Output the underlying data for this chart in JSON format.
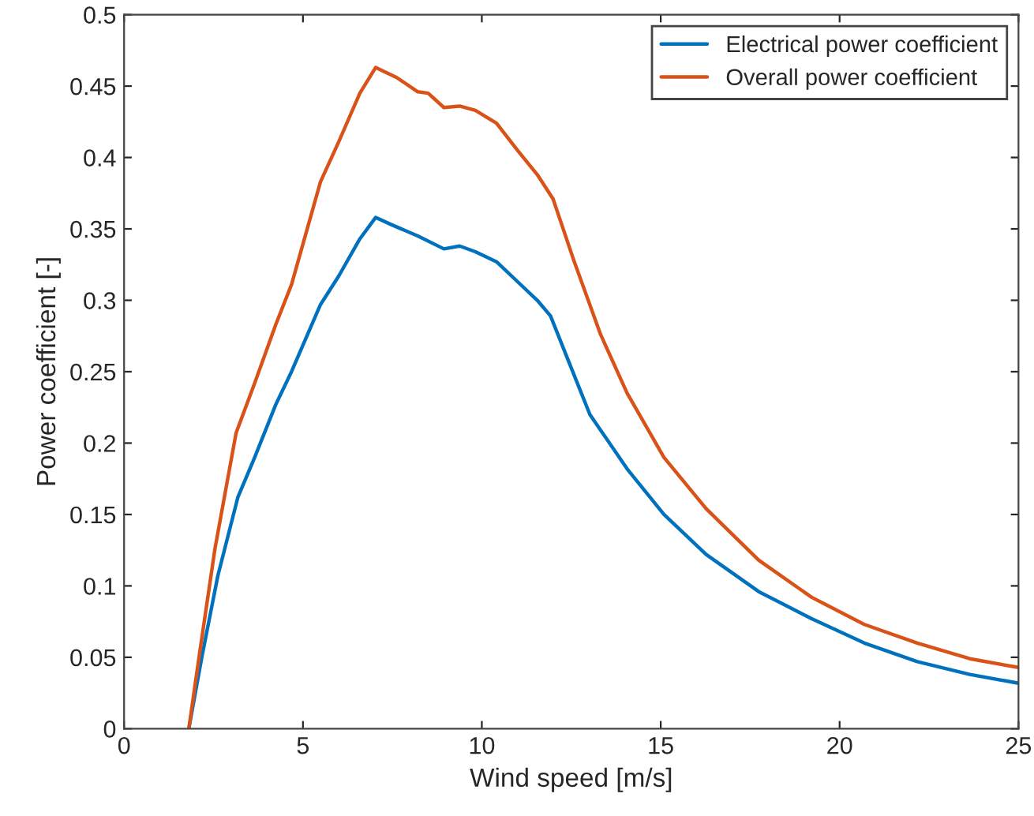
{
  "chart_data": {
    "type": "line",
    "xlabel": "Wind speed [m/s]",
    "ylabel": "Power coefficient [-]",
    "xlim": [
      0,
      25
    ],
    "xticks": [
      0,
      5,
      10,
      15,
      20,
      25
    ],
    "ylim": [
      0,
      0.5
    ],
    "yticks": [
      0,
      0.05,
      0.1,
      0.15,
      0.2,
      0.25,
      0.3,
      0.35,
      0.4,
      0.45,
      0.5
    ],
    "grid": false,
    "legend": "top right",
    "series": [
      {
        "name": "Electrical power coefficient",
        "color": "#0072bd",
        "x": [
          1.81,
          2.18,
          2.62,
          3.18,
          3.65,
          4.24,
          4.68,
          5.49,
          6.0,
          6.59,
          7.03,
          7.47,
          8.21,
          8.94,
          9.38,
          9.82,
          10.41,
          11.0,
          11.55,
          11.92,
          12.43,
          13.02,
          14.06,
          15.09,
          16.27,
          17.74,
          19.22,
          20.69,
          22.17,
          23.64,
          24.97
        ],
        "values": [
          0,
          0.051,
          0.107,
          0.162,
          0.19,
          0.227,
          0.25,
          0.297,
          0.317,
          0.343,
          0.358,
          0.353,
          0.345,
          0.336,
          0.338,
          0.334,
          0.327,
          0.313,
          0.3,
          0.289,
          0.257,
          0.22,
          0.182,
          0.15,
          0.122,
          0.096,
          0.077,
          0.06,
          0.047,
          0.038,
          0.032
        ]
      },
      {
        "name": "Overall power coefficient",
        "color": "#d95319",
        "x": [
          1.81,
          2.1,
          2.54,
          3.13,
          3.65,
          4.24,
          4.68,
          5.49,
          6.0,
          6.59,
          7.03,
          7.62,
          8.21,
          8.5,
          8.94,
          9.38,
          9.82,
          10.41,
          11.0,
          11.55,
          11.99,
          12.57,
          13.32,
          14.06,
          15.09,
          16.27,
          17.74,
          19.22,
          20.69,
          22.17,
          23.64,
          24.97
        ],
        "values": [
          0,
          0.051,
          0.126,
          0.207,
          0.242,
          0.283,
          0.311,
          0.383,
          0.411,
          0.445,
          0.463,
          0.456,
          0.446,
          0.445,
          0.435,
          0.436,
          0.433,
          0.424,
          0.405,
          0.388,
          0.371,
          0.328,
          0.276,
          0.235,
          0.19,
          0.154,
          0.118,
          0.092,
          0.073,
          0.06,
          0.049,
          0.043
        ]
      }
    ]
  }
}
